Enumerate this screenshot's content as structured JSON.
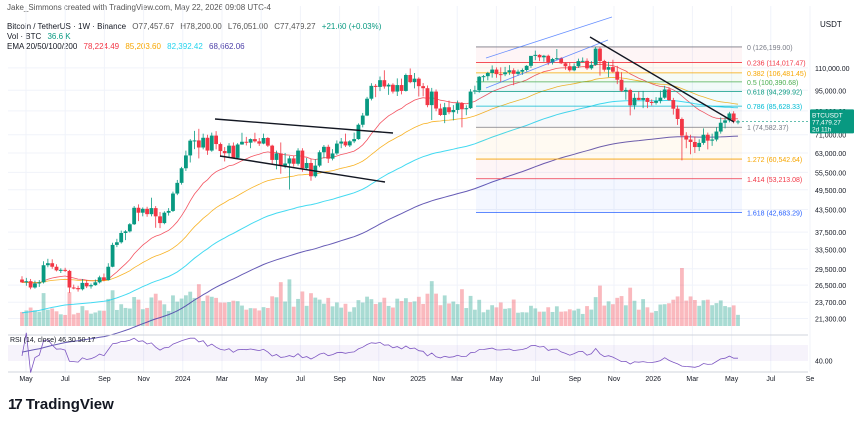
{
  "header": {
    "created": "Jake_Simmons created with TradingView.com, May 22, 2026 09:08 UTC-4",
    "symbol": "Bitcoin / TetherUS · 1W · Binance",
    "ohlc": [
      "O77,457.67",
      "H78,200.00",
      "L76,051.00",
      "C77,479.27",
      "+21.60 (+0.03%)"
    ],
    "vol_label": "Vol · BTC",
    "vol_value": "36.6 K",
    "ema_label": "EMA 20/50/100/200",
    "ema_values": [
      {
        "value": "78,224.49",
        "color": "#f23645"
      },
      {
        "value": "85,203.60",
        "color": "#f7a600"
      },
      {
        "value": "82,392.42",
        "color": "#22d3ee"
      },
      {
        "value": "68,662.06",
        "color": "#4b3ea8"
      }
    ],
    "rsi_label": "RSI (14, close)",
    "rsi_value": "46.30",
    "rsi_sma": "50.17",
    "currency": "USDT"
  },
  "brand": "TradingView",
  "colors": {
    "up": "#089981",
    "down": "#f23645",
    "grid": "#f0f3fa",
    "text": "#131722",
    "rsi": "#7e57c2"
  },
  "chart_data": {
    "type": "candlestick",
    "y_scale": "log",
    "ylim": [
      19500,
      165000
    ],
    "y_ticks": [
      "110,000.00",
      "95,000.00",
      "83,000.00",
      "71,000.00",
      "63,000.00",
      "55,500.00",
      "49,500.00",
      "43,500.00",
      "37,500.00",
      "33,500.00",
      "29,500.00",
      "26,500.00",
      "23,700.00",
      "21,300.00"
    ],
    "x_labels": [
      "May",
      "Jul",
      "Sep",
      "Nov",
      "2024",
      "Mar",
      "May",
      "Jul",
      "Sep",
      "Nov",
      "2025",
      "Mar",
      "May",
      "Jul",
      "Sep",
      "Nov",
      "2026",
      "Mar",
      "May",
      "Jul",
      "Se"
    ],
    "price_label": {
      "symbol": "BTCUSDT",
      "price": "77,479.27",
      "countdown": "2d 11h"
    },
    "fibonacci": [
      {
        "label": "0 (126,199.00)",
        "ratio": 0,
        "price": 126199,
        "color": "#787b86"
      },
      {
        "label": "0.236 (114,017.47)",
        "ratio": 0.236,
        "price": 114017.47,
        "color": "#f23645"
      },
      {
        "label": "0.382 (106,481.45)",
        "ratio": 0.382,
        "price": 106481.45,
        "color": "#f7a600"
      },
      {
        "label": "0.5 (100,390.68)",
        "ratio": 0.5,
        "price": 100390.68,
        "color": "#4caf50"
      },
      {
        "label": "0.618 (94,299.92)",
        "ratio": 0.618,
        "price": 94299.92,
        "color": "#089981"
      },
      {
        "label": "0.786 (85,628.33)",
        "ratio": 0.786,
        "price": 85628.33,
        "color": "#00bcd4"
      },
      {
        "label": "1 (74,582.37)",
        "ratio": 1,
        "price": 74582.37,
        "color": "#787b86"
      },
      {
        "label": "1.272 (60,542.64)",
        "ratio": 1.272,
        "price": 60542.64,
        "color": "#f7a600"
      },
      {
        "label": "1.414 (53,213.08)",
        "ratio": 1.414,
        "price": 53213.08,
        "color": "#f23645"
      },
      {
        "label": "1.618 (42,683.29)",
        "ratio": 1.618,
        "price": 42683.29,
        "color": "#2962ff"
      }
    ],
    "candles": [
      [
        27500,
        28100,
        26900,
        27000
      ],
      [
        27000,
        27800,
        26400,
        27200
      ],
      [
        27200,
        27600,
        25800,
        26100
      ],
      [
        26100,
        27300,
        25900,
        26800
      ],
      [
        26800,
        27400,
        26200,
        27000
      ],
      [
        27000,
        31000,
        26800,
        30200
      ],
      [
        30200,
        31500,
        29800,
        30600
      ],
      [
        30600,
        31400,
        29500,
        29900
      ],
      [
        29900,
        30400,
        29000,
        29200
      ],
      [
        29200,
        29600,
        28700,
        29300
      ],
      [
        29300,
        29700,
        28900,
        29100
      ],
      [
        29100,
        29300,
        25200,
        26100
      ],
      [
        26100,
        26600,
        25800,
        26000
      ],
      [
        26000,
        26400,
        25400,
        25800
      ],
      [
        25800,
        27600,
        25600,
        26900
      ],
      [
        26900,
        27400,
        26000,
        26300
      ],
      [
        26300,
        26800,
        25900,
        26500
      ],
      [
        26500,
        27500,
        26400,
        27000
      ],
      [
        27000,
        28200,
        26800,
        27900
      ],
      [
        27900,
        28600,
        27200,
        27400
      ],
      [
        27400,
        30600,
        27300,
        29900
      ],
      [
        29900,
        35000,
        29800,
        34500
      ],
      [
        34500,
        35900,
        34000,
        35100
      ],
      [
        35100,
        37900,
        34800,
        37300
      ],
      [
        37300,
        38000,
        35600,
        37700
      ],
      [
        37700,
        39800,
        37400,
        39500
      ],
      [
        39500,
        44500,
        39300,
        44000
      ],
      [
        44000,
        45000,
        40300,
        42600
      ],
      [
        42600,
        44100,
        41600,
        43700
      ],
      [
        43700,
        44300,
        41500,
        42200
      ],
      [
        42200,
        47000,
        41600,
        43900
      ],
      [
        43900,
        44500,
        38600,
        41600
      ],
      [
        41600,
        42800,
        38500,
        39800
      ],
      [
        39800,
        43000,
        39500,
        42600
      ],
      [
        42600,
        43900,
        41800,
        43100
      ],
      [
        43100,
        48900,
        42800,
        48300
      ],
      [
        48300,
        52800,
        47800,
        51800
      ],
      [
        51800,
        57500,
        51200,
        57000
      ],
      [
        57000,
        64000,
        56000,
        62000
      ],
      [
        62000,
        69000,
        59200,
        68300
      ],
      [
        68300,
        72800,
        64600,
        68400
      ],
      [
        68400,
        73800,
        60800,
        65300
      ],
      [
        65300,
        71500,
        64500,
        69600
      ],
      [
        69600,
        71000,
        62200,
        64000
      ],
      [
        64000,
        72000,
        63500,
        70600
      ],
      [
        70600,
        72700,
        64500,
        66800
      ],
      [
        66800,
        67500,
        61400,
        63800
      ],
      [
        63800,
        65500,
        59600,
        62900
      ],
      [
        62900,
        67200,
        61000,
        66100
      ],
      [
        66100,
        67500,
        60800,
        61000
      ],
      [
        61000,
        67200,
        60700,
        66600
      ],
      [
        66600,
        71900,
        66500,
        67800
      ],
      [
        67800,
        70000,
        66200,
        67400
      ],
      [
        67400,
        69300,
        65000,
        69000
      ],
      [
        69000,
        71900,
        67500,
        68000
      ],
      [
        68000,
        69500,
        66000,
        67000
      ],
      [
        67000,
        71500,
        66700,
        69500
      ],
      [
        69500,
        69900,
        65500,
        66100
      ],
      [
        66100,
        66500,
        58500,
        60200
      ],
      [
        60200,
        64000,
        56600,
        62800
      ],
      [
        62800,
        67500,
        55000,
        58000
      ],
      [
        58000,
        63000,
        57000,
        58800
      ],
      [
        58800,
        61800,
        49600,
        60800
      ],
      [
        60800,
        61900,
        57600,
        58700
      ],
      [
        58700,
        65000,
        58000,
        64000
      ],
      [
        64000,
        65000,
        55700,
        57000
      ],
      [
        57000,
        61000,
        56500,
        59000
      ],
      [
        59000,
        60700,
        52500,
        54100
      ],
      [
        54100,
        60500,
        53600,
        58000
      ],
      [
        58000,
        64100,
        57400,
        63300
      ],
      [
        63300,
        66400,
        60800,
        65600
      ],
      [
        65600,
        66500,
        59000,
        60700
      ],
      [
        60700,
        64600,
        60000,
        62800
      ],
      [
        62800,
        68400,
        62200,
        67000
      ],
      [
        67000,
        69500,
        65000,
        67900
      ],
      [
        67900,
        71500,
        65500,
        66200
      ],
      [
        66200,
        68500,
        65500,
        68000
      ],
      [
        68000,
        72000,
        67200,
        69000
      ],
      [
        69000,
        76500,
        68700,
        75800
      ],
      [
        75800,
        81900,
        74500,
        80500
      ],
      [
        80500,
        91000,
        80200,
        89900
      ],
      [
        89900,
        99500,
        88900,
        97800
      ],
      [
        97800,
        99000,
        90800,
        97100
      ],
      [
        97100,
        104000,
        94500,
        101500
      ],
      [
        101500,
        108300,
        96000,
        97400
      ],
      [
        97400,
        99500,
        92200,
        98500
      ],
      [
        98500,
        99500,
        93000,
        94200
      ],
      [
        94200,
        102700,
        91500,
        98300
      ],
      [
        98300,
        102500,
        92500,
        94600
      ],
      [
        94600,
        106000,
        94200,
        105000
      ],
      [
        105000,
        109600,
        99500,
        100200
      ],
      [
        100200,
        106400,
        96200,
        102500
      ],
      [
        102500,
        103400,
        91200,
        97600
      ],
      [
        97600,
        99600,
        91300,
        96300
      ],
      [
        96300,
        98000,
        85000,
        86200
      ],
      [
        86200,
        96500,
        78200,
        94200
      ],
      [
        94200,
        95500,
        82800,
        84300
      ],
      [
        84300,
        87000,
        80300,
        80800
      ],
      [
        80800,
        87500,
        76600,
        85000
      ],
      [
        85000,
        88800,
        81200,
        82300
      ],
      [
        82300,
        86200,
        78000,
        83500
      ],
      [
        83500,
        88800,
        81500,
        87300
      ],
      [
        87300,
        88000,
        74500,
        83900
      ],
      [
        83900,
        86100,
        80700,
        84500
      ],
      [
        84500,
        95700,
        84000,
        94200
      ],
      [
        94200,
        97900,
        92600,
        94900
      ],
      [
        94900,
        104300,
        93500,
        103800
      ],
      [
        103800,
        105000,
        100700,
        104200
      ],
      [
        104200,
        107200,
        101400,
        106400
      ],
      [
        106400,
        111800,
        103200,
        108800
      ],
      [
        108800,
        110400,
        103100,
        105600
      ],
      [
        105600,
        110400,
        100400,
        105500
      ],
      [
        105500,
        110700,
        104200,
        106900
      ],
      [
        106900,
        112000,
        105100,
        108300
      ],
      [
        108300,
        109700,
        98200,
        105800
      ],
      [
        105800,
        108800,
        104600,
        107300
      ],
      [
        107300,
        109600,
        105100,
        108500
      ],
      [
        108500,
        112000,
        107500,
        111500
      ],
      [
        111500,
        118800,
        110000,
        119000
      ],
      [
        119000,
        123200,
        115700,
        119800
      ],
      [
        119800,
        120300,
        115000,
        117900
      ],
      [
        117900,
        119800,
        114500,
        119100
      ],
      [
        119100,
        120000,
        112000,
        114000
      ],
      [
        114000,
        117500,
        112500,
        116600
      ],
      [
        116600,
        124500,
        115600,
        117200
      ],
      [
        117200,
        118000,
        112800,
        113400
      ],
      [
        113400,
        113900,
        108700,
        111200
      ],
      [
        111200,
        113700,
        107300,
        108300
      ],
      [
        108300,
        113300,
        107600,
        111200
      ],
      [
        111200,
        116900,
        110000,
        115000
      ],
      [
        115000,
        117800,
        114000,
        115200
      ],
      [
        115200,
        117100,
        108600,
        109700
      ],
      [
        109700,
        115000,
        108700,
        112200
      ],
      [
        112200,
        126199,
        111500,
        124800
      ],
      [
        124800,
        126000,
        104600,
        115100
      ],
      [
        115100,
        116000,
        107300,
        108700
      ],
      [
        108700,
        114500,
        103500,
        110600
      ],
      [
        110600,
        116000,
        106500,
        107300
      ],
      [
        107300,
        111500,
        98900,
        101800
      ],
      [
        101800,
        107000,
        94000,
        94700
      ],
      [
        94700,
        96700,
        89300,
        95200
      ],
      [
        95200,
        96000,
        80600,
        86100
      ],
      [
        86100,
        93000,
        83800,
        90400
      ],
      [
        90400,
        94100,
        89000,
        89200
      ],
      [
        89200,
        94600,
        84500,
        90300
      ],
      [
        90300,
        90500,
        84500,
        88000
      ],
      [
        88000,
        89500,
        86000,
        87500
      ],
      [
        87500,
        90800,
        86500,
        88600
      ],
      [
        88600,
        94800,
        87200,
        90500
      ],
      [
        90500,
        97800,
        89800,
        95500
      ],
      [
        95500,
        97000,
        88600,
        89100
      ],
      [
        89100,
        90400,
        81000,
        84200
      ],
      [
        84200,
        86000,
        75700,
        78700
      ],
      [
        78700,
        79500,
        60000,
        70600
      ],
      [
        70600,
        72200,
        65000,
        68800
      ],
      [
        68800,
        71000,
        62500,
        67700
      ],
      [
        67700,
        70200,
        63000,
        65500
      ],
      [
        65500,
        68900,
        63800,
        67300
      ],
      [
        67300,
        74000,
        66500,
        71000
      ],
      [
        71000,
        72000,
        64500,
        68300
      ],
      [
        68300,
        71500,
        66000,
        68800
      ],
      [
        68800,
        74500,
        68000,
        72500
      ],
      [
        72500,
        79500,
        71500,
        76800
      ],
      [
        76800,
        79800,
        74000,
        78000
      ],
      [
        78000,
        82500,
        77000,
        81600
      ],
      [
        81600,
        82800,
        76500,
        77457
      ],
      [
        77457,
        78200,
        76051,
        77479
      ]
    ]
  }
}
